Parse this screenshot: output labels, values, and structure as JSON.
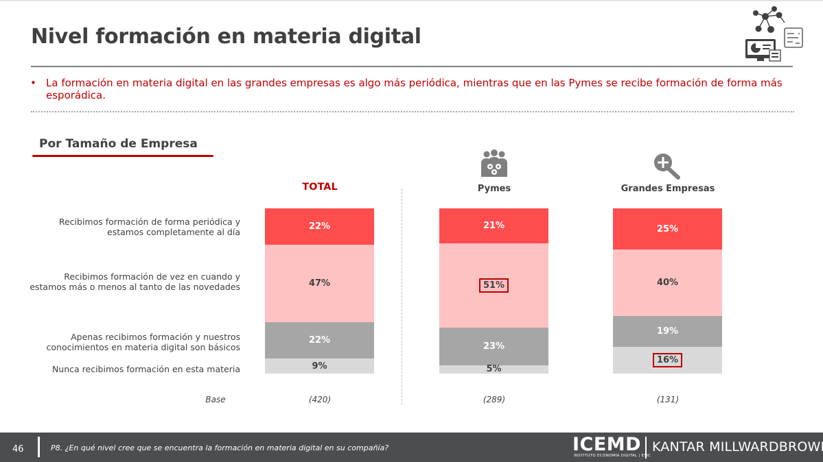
{
  "page": {
    "title": "Nivel formación en materia digital",
    "bullet": "La formación en materia digital en las grandes empresas es algo más periódica, mientras que en las Pymes se recibe formación de forma más esporádica.",
    "bullet_marker": "•",
    "section_title": "Por Tamaño de Empresa"
  },
  "footer": {
    "page_number": "46",
    "question": "P8. ¿En qué nivel cree que se encuentra la formación en materia digital en su compañía?",
    "logo_icemd": "ICEMD",
    "logo_icemd_sub": "INSTITUTO ECONOMÍA DIGITAL | ESIC",
    "logo_kantar": "KANTAR MILLWARDBROWN"
  },
  "icons": {
    "header": "network-analytics-icon",
    "pymes": "group-gears-icon",
    "grandes": "magnifier-plus-icon"
  },
  "colors": {
    "brand_red": "#c00000",
    "seg1": "#ff4d4d",
    "seg2": "#ffc2c2",
    "seg3": "#a6a6a6",
    "seg4": "#d9d9d9"
  },
  "chart_data": {
    "type": "bar",
    "stacked": true,
    "percent": true,
    "base_label": "Base",
    "categories": [
      "TOTAL",
      "Pymes",
      "Grandes Empresas"
    ],
    "bases": [
      "(420)",
      "(289)",
      "(131)"
    ],
    "series": [
      {
        "name": "Recibimos formación de forma periódica y estamos completamente al día",
        "label_lines": [
          "Recibimos formación de forma periódica y",
          "estamos completamente al día"
        ],
        "values": [
          22,
          21,
          25
        ]
      },
      {
        "name": "Recibimos formación de vez en cuando y estamos más o menos al tanto de las novedades",
        "label_lines": [
          "Recibimos formación de vez en cuando y",
          "estamos más o menos al tanto de las novedades"
        ],
        "values": [
          47,
          51,
          40
        ]
      },
      {
        "name": "Apenas recibimos formación y nuestros conocimientos en materia digital son básicos",
        "label_lines": [
          "Apenas recibimos formación y nuestros",
          "conocimientos en materia digital son básicos"
        ],
        "values": [
          22,
          23,
          19
        ]
      },
      {
        "name": "Nunca recibimos formación en esta materia",
        "label_lines": [
          "Nunca recibimos formación en esta materia"
        ],
        "values": [
          9,
          5,
          16
        ]
      }
    ],
    "highlighted": [
      {
        "category": "Pymes",
        "series": 1
      },
      {
        "category": "Grandes Empresas",
        "series": 3
      }
    ]
  }
}
